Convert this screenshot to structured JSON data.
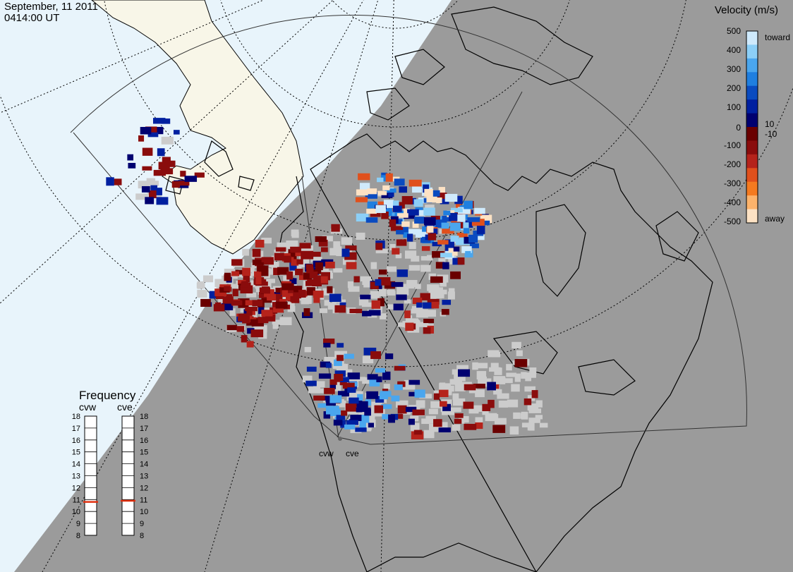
{
  "header": {
    "date": "September, 11 2011",
    "time": "0414:00 UT"
  },
  "stations": [
    "cvw",
    "cve"
  ],
  "colorbar": {
    "title": "Velocity (m/s)",
    "ticks": [
      "500",
      "400",
      "300",
      "200",
      "100",
      "10",
      "0",
      "-10",
      "-100",
      "-200",
      "-300",
      "-400",
      "-500"
    ],
    "label_toward": "toward",
    "label_away": "away",
    "colors": [
      "#fde2c4",
      "#fdb36b",
      "#f47a20",
      "#e0501c",
      "#b5231b",
      "#8a0c0c",
      "#6a0000",
      "#000070",
      "#0020a0",
      "#0a4bc0",
      "#1f7fe0",
      "#4aa6ee",
      "#8ccff7",
      "#cfeafc"
    ]
  },
  "frequency": {
    "title": "Frequency",
    "columns": [
      "cvw",
      "cve"
    ],
    "levels": [
      "18",
      "17",
      "16",
      "15",
      "14",
      "13",
      "12",
      "11",
      "10",
      "9",
      "8"
    ],
    "selected_mhz": [
      10.8,
      10.9
    ]
  },
  "colors": {
    "night": "#9b9b9b",
    "day_ocean": "#e8f4fb",
    "day_land": "#f8f6e8",
    "ground_scatter": "#cccccc",
    "coast": "#000000"
  }
}
